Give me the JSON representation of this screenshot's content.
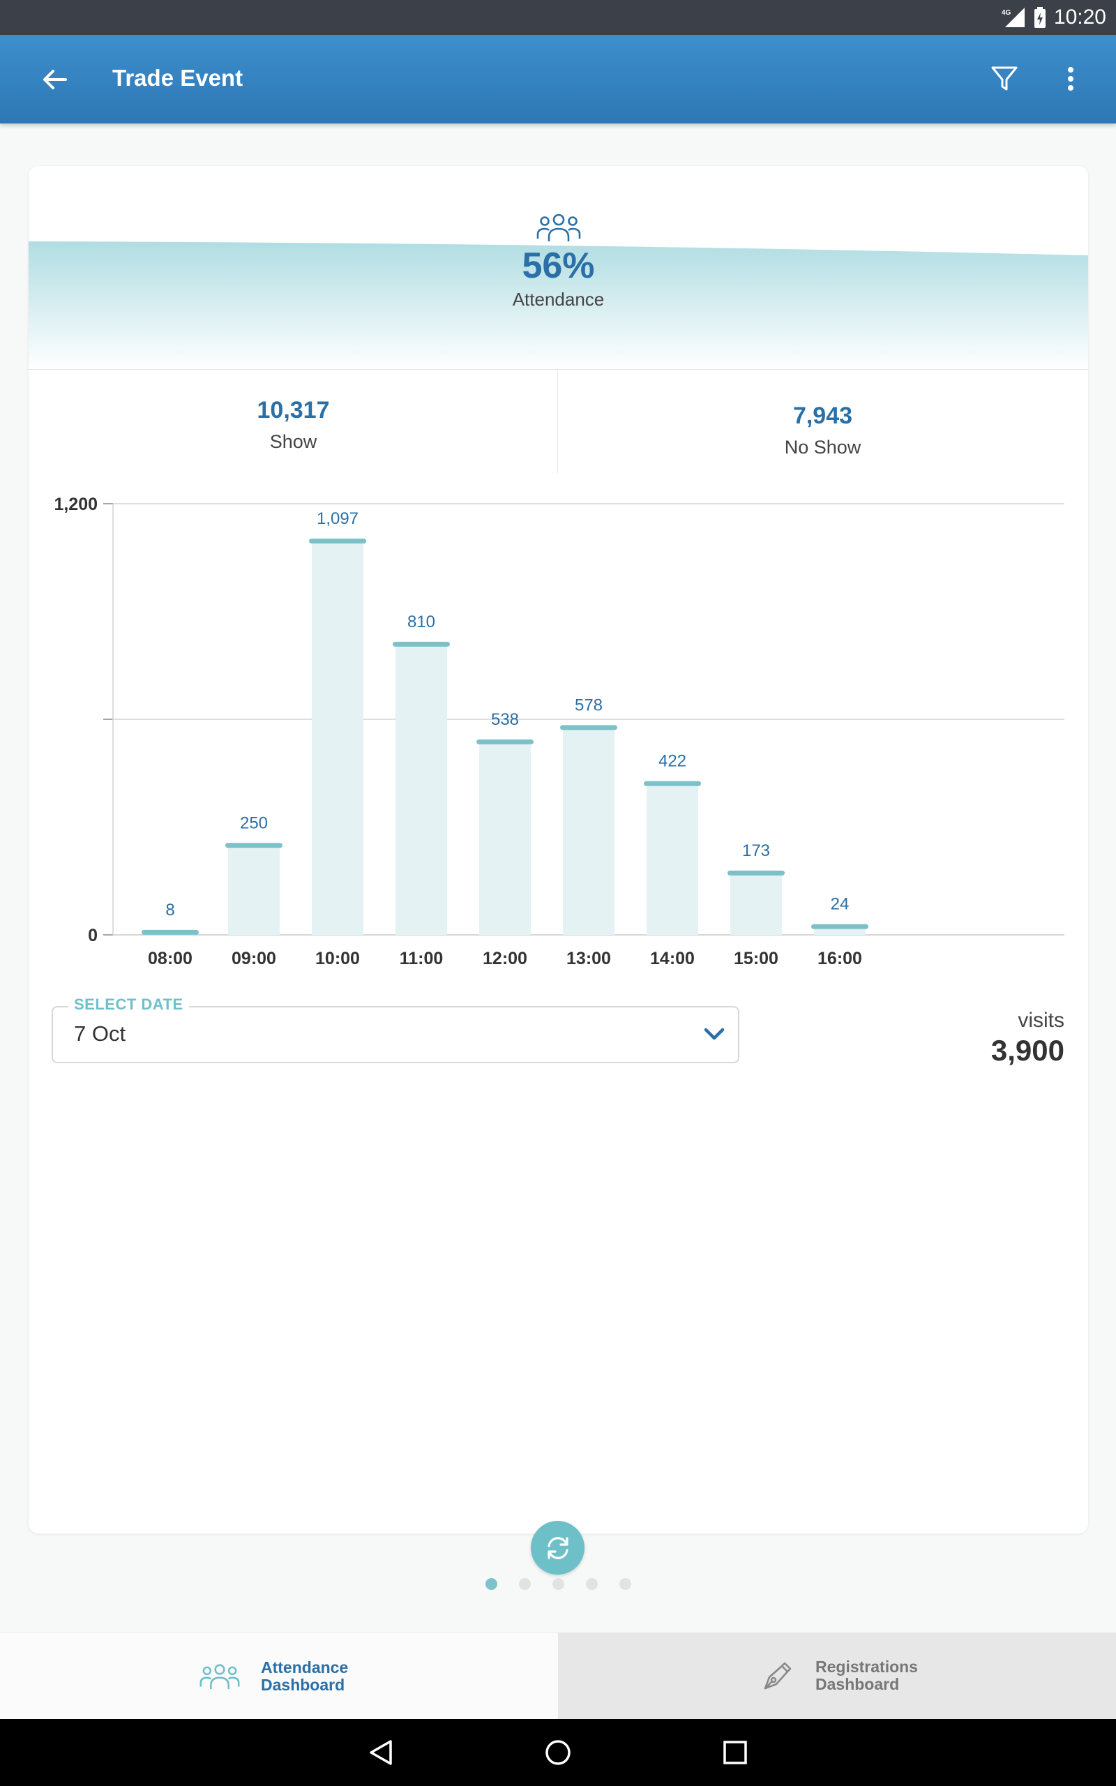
{
  "status_bar": {
    "time": "10:20",
    "network": "4G"
  },
  "app_bar": {
    "title": "Trade Event"
  },
  "attendance": {
    "percent": "56%",
    "label": "Attendance"
  },
  "stats": {
    "show": {
      "value": "10,317",
      "label": "Show"
    },
    "no_show": {
      "value": "7,943",
      "label": "No Show"
    }
  },
  "chart_data": {
    "type": "bar",
    "categories": [
      "08:00",
      "09:00",
      "10:00",
      "11:00",
      "12:00",
      "13:00",
      "14:00",
      "15:00",
      "16:00"
    ],
    "values": [
      8,
      250,
      1097,
      810,
      538,
      578,
      422,
      173,
      24
    ],
    "value_labels": [
      "8",
      "250",
      "1,097",
      "810",
      "538",
      "578",
      "422",
      "173",
      "24"
    ],
    "y_ticks": [
      "0",
      "1,200"
    ],
    "ylim": [
      0,
      1200
    ],
    "grid": true,
    "colors": {
      "bar_fill": "#e4f2f4",
      "bar_cap": "#7cc0c8",
      "label": "#2a6fa6"
    }
  },
  "date_select": {
    "label": "SELECT DATE",
    "value": "7 Oct"
  },
  "visits": {
    "label": "visits",
    "value": "3,900"
  },
  "pager": {
    "count": 5,
    "active": 0
  },
  "tabs": [
    {
      "line1": "Attendance",
      "line2": "Dashboard",
      "active": true
    },
    {
      "line1": "Registrations",
      "line2": "Dashboard",
      "active": false
    }
  ],
  "icons": [
    "back-arrow-icon",
    "filter-icon",
    "more-vert-icon",
    "people-icon",
    "chevron-down-icon",
    "refresh-icon",
    "pen-icon",
    "nav-back-icon",
    "nav-home-icon",
    "nav-recents-icon"
  ],
  "colors": {
    "primary": "#2d77b4",
    "accent": "#6ec0c8",
    "text_blue": "#2a6fa6"
  }
}
